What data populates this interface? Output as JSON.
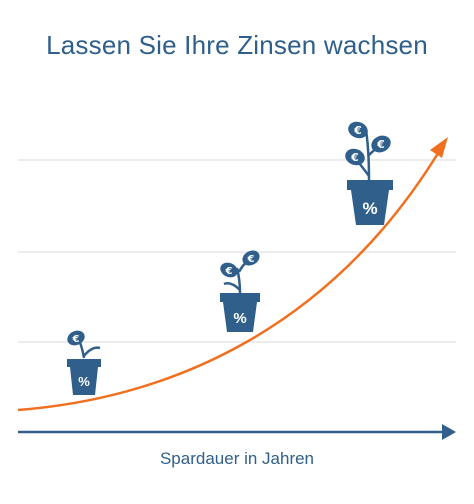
{
  "title": "Lassen Sie Ihre Zinsen wachsen",
  "x_axis_label": "Spardauer in Jahren",
  "pot_label": "%",
  "leaf_label": "€",
  "colors": {
    "primary": "#2f5f8a",
    "curve": "#f07020",
    "gridline": "#e6e6e6"
  },
  "stages": [
    {
      "name": "small-plant",
      "euro_leaves": 1
    },
    {
      "name": "medium-plant",
      "euro_leaves": 2
    },
    {
      "name": "large-plant",
      "euro_leaves": 3
    }
  ]
}
